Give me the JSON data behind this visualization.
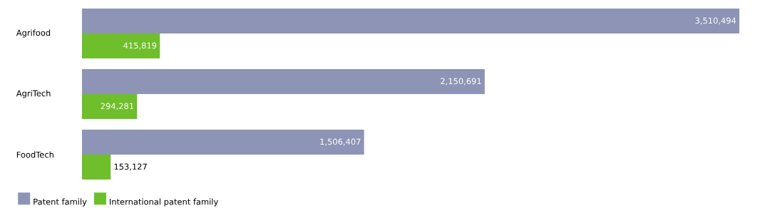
{
  "chart_data": {
    "type": "bar",
    "orientation": "horizontal",
    "categories": [
      "Agrifood",
      "AgriTech",
      "FoodTech"
    ],
    "series": [
      {
        "name": "Patent family",
        "color": "#8e94b5",
        "values": [
          3510494,
          2150691,
          1506407
        ],
        "value_labels": [
          "3,510,494",
          "2,150,691",
          "1,506,407"
        ]
      },
      {
        "name": "International patent family",
        "color": "#6fbe2b",
        "values": [
          415819,
          294281,
          153127
        ],
        "value_labels": [
          "415,819",
          "294,281",
          "153,127"
        ]
      }
    ],
    "legend": "bottom left"
  }
}
